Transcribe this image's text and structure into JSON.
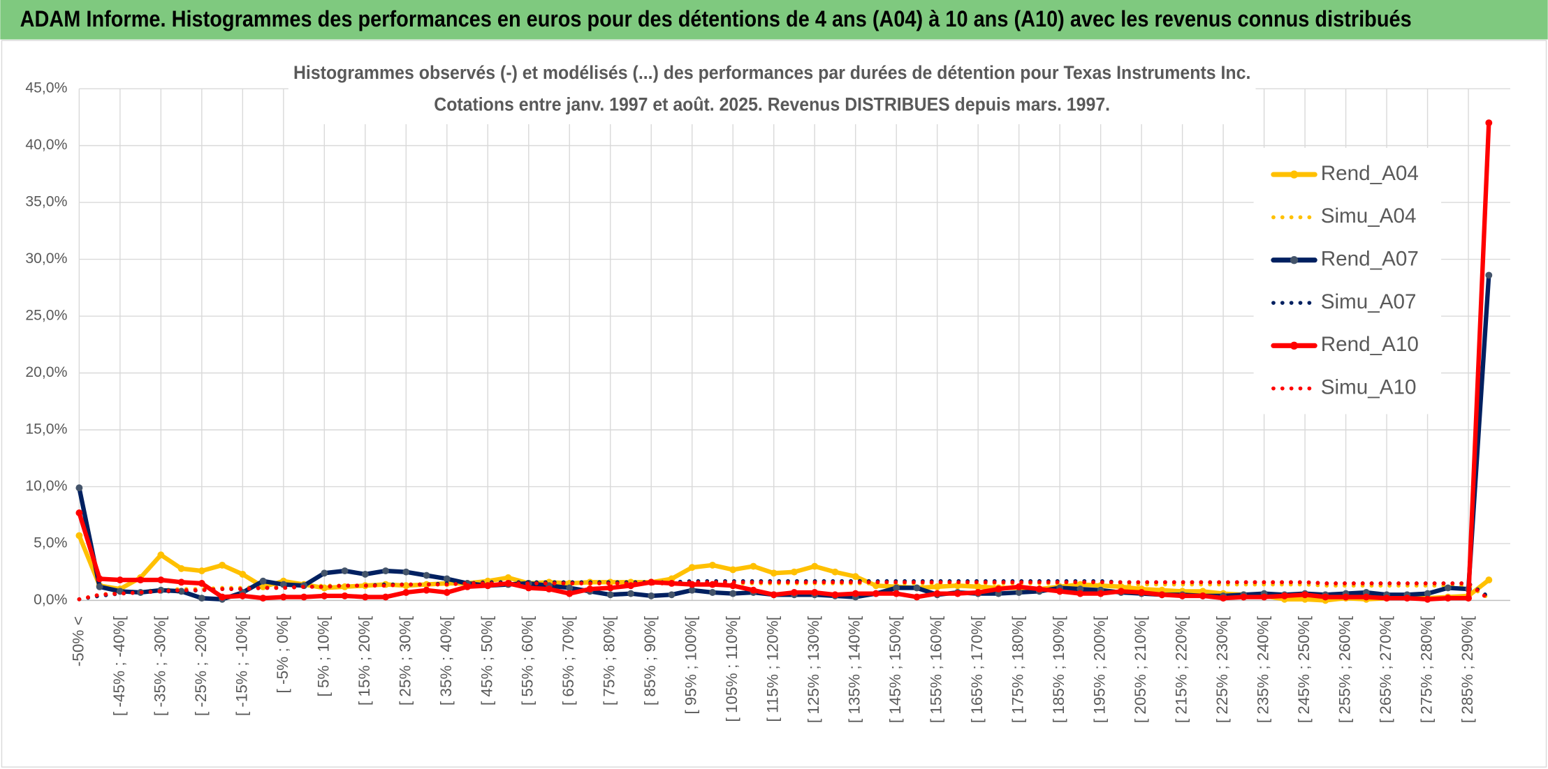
{
  "header": {
    "title": "ADAM Informe. Histogrammes des performances en euros pour des détentions de 4 ans (A04) à 10 ans (A10) avec les revenus connus distribués"
  },
  "chart_data": {
    "type": "line",
    "title": "Histogrammes observés (-) et modélisés (...) des performances par durées de détention pour Texas Instruments Inc.",
    "subtitle": "Cotations entre janv. 1997 et août. 2025. Revenus DISTRIBUES depuis mars. 1997.",
    "categories": [
      "-50% <",
      null,
      "[ -45% ; -40%[",
      null,
      "[ -35% ; -30%[",
      null,
      "[ -25% ; -20%[",
      null,
      "[ -15% ; -10%[",
      null,
      "[ -5% ; 0%[",
      null,
      "[ 5% ; 10%[",
      null,
      "[ 15% ; 20%[",
      null,
      "[ 25% ; 30%[",
      null,
      "[ 35% ; 40%[",
      null,
      "[ 45% ; 50%[",
      null,
      "[ 55% ; 60%[",
      null,
      "[ 65% ; 70%[",
      null,
      "[ 75% ; 80%[",
      null,
      "[ 85% ; 90%[",
      null,
      "[ 95% ; 100%[",
      null,
      "[ 105% ; 110%[",
      null,
      "[ 115% ; 120%[",
      null,
      "[ 125% ; 130%[",
      null,
      "[ 135% ; 140%[",
      null,
      "[ 145% ; 150%[",
      null,
      "[ 155% ; 160%[",
      null,
      "[ 165% ; 170%[",
      null,
      "[ 175% ; 180%[",
      null,
      "[ 185% ; 190%[",
      null,
      "[ 195% ; 200%[",
      null,
      "[ 205% ; 210%[",
      null,
      "[ 215% ; 220%[",
      null,
      "[ 225% ; 230%[",
      null,
      "[ 235% ; 240%[",
      null,
      "[ 245% ; 250%[",
      null,
      "[ 255% ; 260%[",
      null,
      "[ 265% ; 270%[",
      null,
      "[ 275% ; 280%[",
      null,
      "[ 285% ; 290%[",
      null
    ],
    "series": [
      {
        "name": "Rend_A04",
        "color": "#ffc000",
        "line_style": "solid",
        "markers": true,
        "values": [
          5.7,
          1.3,
          1.0,
          2.0,
          4.0,
          2.8,
          2.6,
          3.1,
          2.3,
          1.2,
          1.7,
          1.4,
          1.1,
          1.2,
          1.3,
          1.4,
          1.3,
          1.4,
          1.5,
          1.5,
          1.7,
          2.0,
          1.5,
          1.6,
          1.5,
          1.6,
          1.6,
          1.6,
          1.6,
          1.9,
          2.9,
          3.1,
          2.7,
          3.0,
          2.4,
          2.5,
          3.0,
          2.5,
          2.1,
          1.3,
          1.2,
          1.1,
          1.2,
          1.3,
          1.2,
          1.1,
          1.1,
          1.0,
          1.2,
          1.4,
          1.3,
          1.2,
          1.0,
          0.9,
          0.8,
          0.8,
          0.6,
          0.5,
          0.4,
          0.1,
          0.1,
          0.0,
          0.2,
          0.1,
          0.2,
          0.3,
          0.2,
          0.3,
          0.4,
          1.8
        ]
      },
      {
        "name": "Simu_A04",
        "color": "#ffc000",
        "line_style": "dotted",
        "markers": false,
        "values": [
          0.1,
          0.5,
          0.7,
          0.8,
          0.9,
          1.0,
          1.0,
          1.1,
          1.1,
          1.2,
          1.2,
          1.2,
          1.3,
          1.3,
          1.3,
          1.4,
          1.4,
          1.4,
          1.4,
          1.5,
          1.5,
          1.5,
          1.5,
          1.5,
          1.5,
          1.5,
          1.5,
          1.5,
          1.5,
          1.5,
          1.5,
          1.5,
          1.5,
          1.5,
          1.5,
          1.5,
          1.5,
          1.5,
          1.5,
          1.5,
          1.5,
          1.5,
          1.5,
          1.5,
          1.5,
          1.5,
          1.5,
          1.5,
          1.5,
          1.5,
          1.5,
          1.4,
          1.4,
          1.4,
          1.4,
          1.4,
          1.4,
          1.4,
          1.4,
          1.4,
          1.4,
          1.3,
          1.3,
          1.3,
          1.3,
          1.3,
          1.3,
          1.3,
          1.3,
          0.2
        ]
      },
      {
        "name": "Rend_A07",
        "color": "#002060",
        "line_style": "solid",
        "markers": true,
        "values": [
          9.9,
          1.2,
          0.8,
          0.7,
          0.9,
          0.8,
          0.2,
          0.1,
          0.7,
          1.7,
          1.4,
          1.3,
          2.4,
          2.6,
          2.3,
          2.6,
          2.5,
          2.2,
          1.9,
          1.5,
          1.3,
          1.4,
          1.5,
          1.3,
          1.1,
          0.8,
          0.5,
          0.6,
          0.4,
          0.5,
          0.9,
          0.7,
          0.6,
          0.7,
          0.5,
          0.5,
          0.5,
          0.4,
          0.3,
          0.6,
          1.1,
          1.1,
          0.5,
          0.7,
          0.6,
          0.6,
          0.7,
          0.8,
          1.1,
          1.0,
          0.9,
          0.7,
          0.6,
          0.5,
          0.5,
          0.4,
          0.4,
          0.5,
          0.6,
          0.5,
          0.6,
          0.5,
          0.6,
          0.7,
          0.5,
          0.5,
          0.6,
          1.1,
          1.0,
          28.6
        ]
      },
      {
        "name": "Simu_A07",
        "color": "#002060",
        "line_style": "dotted",
        "markers": false,
        "values": [
          0.1,
          0.4,
          0.6,
          0.7,
          0.8,
          0.8,
          0.9,
          1.0,
          1.0,
          1.1,
          1.1,
          1.2,
          1.2,
          1.3,
          1.3,
          1.4,
          1.4,
          1.4,
          1.5,
          1.5,
          1.6,
          1.6,
          1.6,
          1.6,
          1.6,
          1.6,
          1.6,
          1.6,
          1.6,
          1.6,
          1.7,
          1.7,
          1.7,
          1.7,
          1.7,
          1.7,
          1.7,
          1.7,
          1.7,
          1.7,
          1.7,
          1.7,
          1.7,
          1.7,
          1.7,
          1.7,
          1.7,
          1.7,
          1.7,
          1.7,
          1.7,
          1.6,
          1.6,
          1.6,
          1.6,
          1.6,
          1.6,
          1.6,
          1.6,
          1.6,
          1.6,
          1.5,
          1.5,
          1.5,
          1.5,
          1.5,
          1.5,
          1.5,
          1.5,
          0.3
        ]
      },
      {
        "name": "Rend_A10",
        "color": "#ff0000",
        "line_style": "solid",
        "markers": true,
        "values": [
          7.7,
          1.9,
          1.8,
          1.8,
          1.8,
          1.6,
          1.5,
          0.3,
          0.4,
          0.2,
          0.3,
          0.3,
          0.4,
          0.4,
          0.3,
          0.3,
          0.7,
          0.9,
          0.7,
          1.2,
          1.3,
          1.5,
          1.1,
          1.0,
          0.6,
          1.0,
          1.1,
          1.3,
          1.6,
          1.5,
          1.4,
          1.4,
          1.3,
          0.9,
          0.5,
          0.7,
          0.7,
          0.5,
          0.6,
          0.6,
          0.6,
          0.3,
          0.6,
          0.6,
          0.7,
          1.0,
          1.2,
          1.0,
          0.8,
          0.6,
          0.6,
          0.8,
          0.7,
          0.5,
          0.4,
          0.4,
          0.2,
          0.3,
          0.3,
          0.4,
          0.5,
          0.3,
          0.3,
          0.3,
          0.2,
          0.2,
          0.1,
          0.2,
          0.2,
          42.0
        ]
      },
      {
        "name": "Simu_A10",
        "color": "#ff0000",
        "line_style": "dotted",
        "markers": false,
        "values": [
          0.1,
          0.5,
          0.6,
          0.7,
          0.8,
          0.9,
          0.9,
          1.0,
          1.0,
          1.1,
          1.1,
          1.2,
          1.2,
          1.3,
          1.3,
          1.3,
          1.4,
          1.4,
          1.4,
          1.5,
          1.5,
          1.5,
          1.5,
          1.5,
          1.5,
          1.5,
          1.5,
          1.5,
          1.5,
          1.5,
          1.6,
          1.6,
          1.6,
          1.6,
          1.6,
          1.6,
          1.6,
          1.6,
          1.6,
          1.6,
          1.6,
          1.6,
          1.6,
          1.6,
          1.6,
          1.6,
          1.6,
          1.6,
          1.6,
          1.6,
          1.6,
          1.6,
          1.6,
          1.6,
          1.6,
          1.6,
          1.6,
          1.6,
          1.6,
          1.6,
          1.6,
          1.5,
          1.5,
          1.5,
          1.5,
          1.5,
          1.5,
          1.5,
          1.5,
          0.1
        ]
      }
    ],
    "ylim": [
      0,
      45
    ],
    "yticks": [
      {
        "value": 0,
        "label": "0,0%"
      },
      {
        "value": 5,
        "label": "5,0%"
      },
      {
        "value": 10,
        "label": "10,0%"
      },
      {
        "value": 15,
        "label": "15,0%"
      },
      {
        "value": 20,
        "label": "20,0%"
      },
      {
        "value": 25,
        "label": "25,0%"
      },
      {
        "value": 30,
        "label": "30,0%"
      },
      {
        "value": 35,
        "label": "35,0%"
      },
      {
        "value": 40,
        "label": "40,0%"
      },
      {
        "value": 45,
        "label": "45,0%"
      }
    ],
    "grid": true,
    "legend_position": "right"
  }
}
